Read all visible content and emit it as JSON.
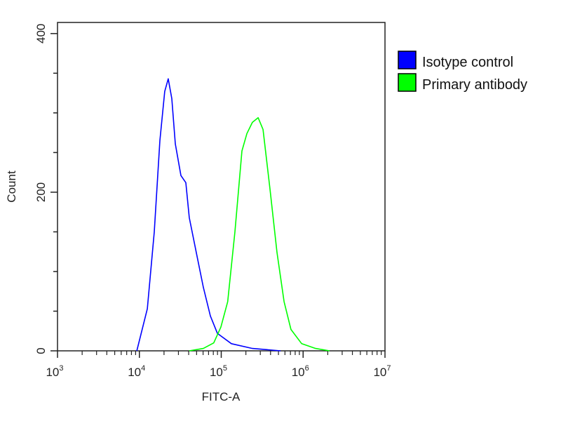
{
  "chart_data": {
    "type": "line",
    "title": "",
    "xlabel": "FITC-A",
    "ylabel": "Count",
    "xscale": "log",
    "xlim": [
      1000,
      10000000
    ],
    "ylim": [
      0,
      414
    ],
    "grid": false,
    "legend_placement": "outside-right-top",
    "x_ticks": [
      {
        "base": "10",
        "exp": "3",
        "value": 1000
      },
      {
        "base": "10",
        "exp": "4",
        "value": 10000
      },
      {
        "base": "10",
        "exp": "5",
        "value": 100000
      },
      {
        "base": "10",
        "exp": "6",
        "value": 1000000
      },
      {
        "base": "10",
        "exp": "7",
        "value": 10000000
      }
    ],
    "y_ticks": [
      {
        "label": "0",
        "value": 0
      },
      {
        "label": "200",
        "value": 200
      },
      {
        "label": "400",
        "value": 400
      }
    ],
    "series": [
      {
        "name": "Isotype control",
        "color": "#0000ff",
        "x": [
          9300,
          12500,
          15200,
          17800,
          20400,
          22500,
          24900,
          27500,
          32200,
          36900,
          40700,
          49600,
          60500,
          73700,
          89700,
          133000,
          240000,
          530000
        ],
        "y": [
          0,
          53,
          150,
          265,
          327,
          343,
          318,
          261,
          221,
          212,
          168,
          124,
          80,
          44,
          22,
          9,
          3,
          0
        ]
      },
      {
        "name": "Primary antibody",
        "color": "#00ff00",
        "x": [
          40700,
          60500,
          81000,
          99000,
          120000,
          147000,
          179000,
          206000,
          240000,
          282000,
          324000,
          394000,
          480000,
          585000,
          710000,
          960000,
          1420000,
          2100000
        ],
        "y": [
          0,
          3,
          10,
          30,
          62,
          150,
          252,
          274,
          288,
          294,
          279,
          204,
          124,
          62,
          27,
          9,
          3,
          0
        ]
      }
    ]
  }
}
